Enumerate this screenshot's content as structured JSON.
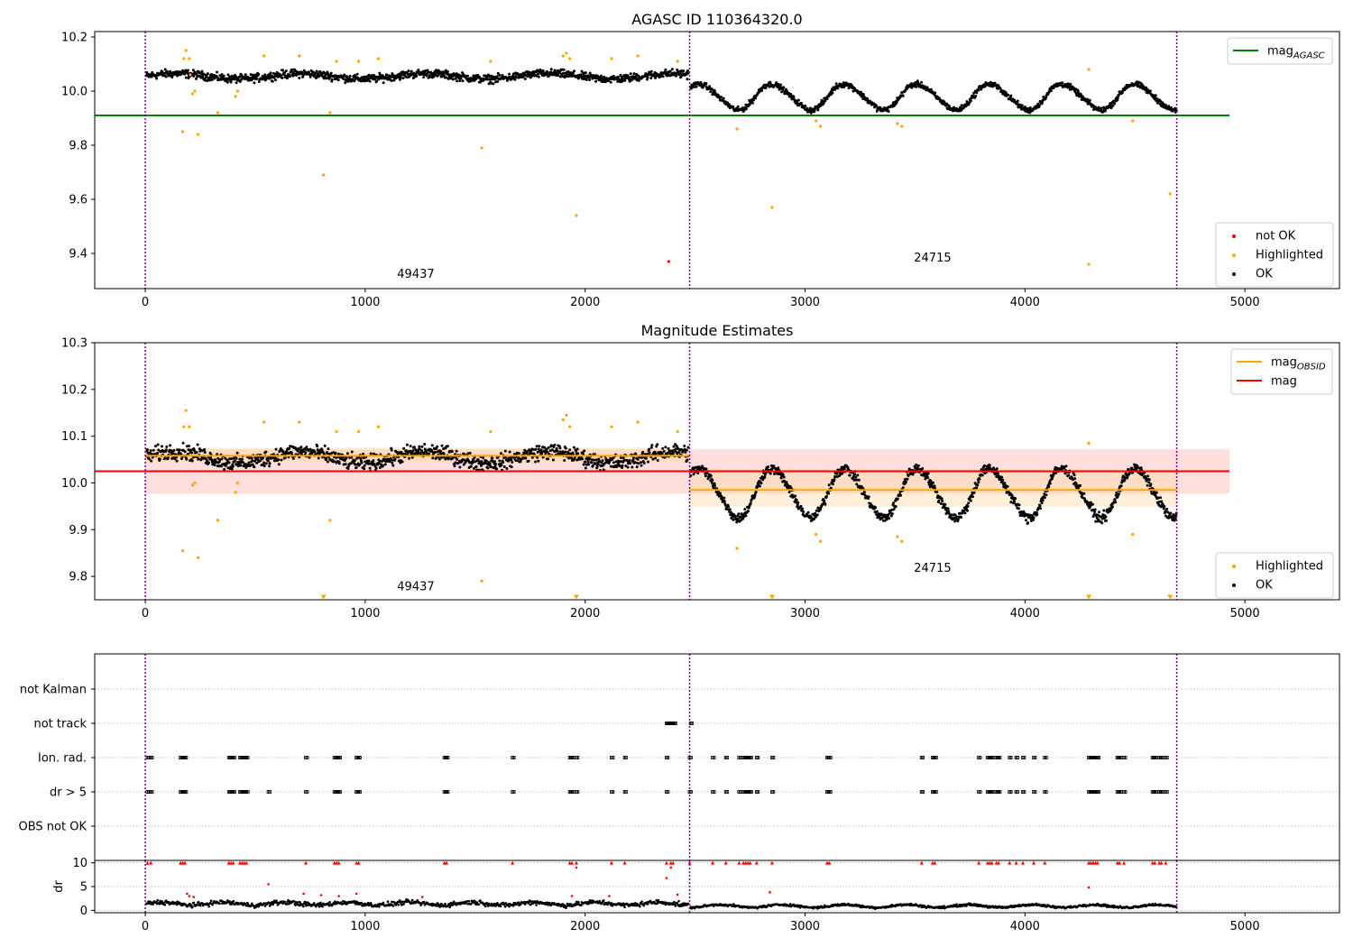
{
  "chart_data": [
    {
      "type": "scatter",
      "title": "AGASC ID 110364320.0",
      "xlim": [
        -230,
        5430
      ],
      "ylim": [
        9.27,
        10.22
      ],
      "xticks": [
        0,
        1000,
        2000,
        3000,
        4000,
        5000
      ],
      "yticks": [
        9.4,
        9.6,
        9.8,
        10.0,
        10.2
      ],
      "obs_boundaries": [
        0,
        2475,
        4690
      ],
      "obs_labels": [
        {
          "text": "49437",
          "x": 1230,
          "y": 9.31
        },
        {
          "text": "24715",
          "x": 3580,
          "y": 9.37
        }
      ],
      "lines": [
        {
          "name": "mag_AGASC",
          "legend": "mag",
          "legend_sub": "AGASC",
          "color": "#008000",
          "x": [
            -230,
            4930
          ],
          "y": [
            9.91,
            9.91
          ]
        }
      ],
      "series": [
        {
          "name": "not OK",
          "color": "#ff0000",
          "points": [
            [
              2380,
              9.37
            ]
          ]
        },
        {
          "name": "Highlighted",
          "color": "#ffa500",
          "points": [
            [
              170,
              9.85
            ],
            [
              175,
              10.12
            ],
            [
              185,
              10.15
            ],
            [
              200,
              10.12
            ],
            [
              205,
              10.06
            ],
            [
              215,
              9.99
            ],
            [
              225,
              10.0
            ],
            [
              240,
              9.84
            ],
            [
              330,
              9.92
            ],
            [
              410,
              9.98
            ],
            [
              420,
              10.0
            ],
            [
              540,
              10.13
            ],
            [
              700,
              10.13
            ],
            [
              810,
              9.69
            ],
            [
              840,
              9.92
            ],
            [
              870,
              10.11
            ],
            [
              970,
              10.11
            ],
            [
              1060,
              10.12
            ],
            [
              1530,
              9.79
            ],
            [
              1570,
              10.11
            ],
            [
              1900,
              10.13
            ],
            [
              1915,
              10.14
            ],
            [
              1930,
              10.12
            ],
            [
              1960,
              9.54
            ],
            [
              2120,
              10.12
            ],
            [
              2240,
              10.13
            ],
            [
              2420,
              10.11
            ],
            [
              2690,
              9.86
            ],
            [
              2850,
              9.57
            ],
            [
              3050,
              9.89
            ],
            [
              3070,
              9.87
            ],
            [
              3420,
              9.88
            ],
            [
              3440,
              9.87
            ],
            [
              4290,
              10.08
            ],
            [
              4290,
              9.36
            ],
            [
              4490,
              9.89
            ],
            [
              4660,
              9.62
            ]
          ]
        }
      ],
      "ok_segments": [
        {
          "x0": 5,
          "x1": 2470,
          "base": 10.055,
          "amp": 0.01,
          "noise": 0.022
        },
        {
          "x0": 2480,
          "x1": 4690,
          "base": 9.985,
          "amp": 0.055,
          "noise": 0.015
        }
      ],
      "legend_upper": [
        {
          "text": "mag",
          "sub": "AGASC",
          "kind": "line",
          "color": "#008000"
        }
      ],
      "legend_lower": [
        {
          "text": "not OK",
          "kind": "dot",
          "color": "#ff0000"
        },
        {
          "text": "Highlighted",
          "kind": "dot",
          "color": "#ffa500"
        },
        {
          "text": "OK",
          "kind": "dot",
          "color": "#000000"
        }
      ]
    },
    {
      "type": "scatter",
      "title": "Magnitude Estimates",
      "xlim": [
        -230,
        5430
      ],
      "ylim": [
        9.75,
        10.3
      ],
      "xticks": [
        0,
        1000,
        2000,
        3000,
        4000,
        5000
      ],
      "yticks": [
        9.8,
        9.9,
        10.0,
        10.1,
        10.2,
        10.3
      ],
      "obs_boundaries": [
        0,
        2475,
        4690
      ],
      "obs_labels": [
        {
          "text": "49437",
          "x": 1230,
          "y": 9.77
        },
        {
          "text": "24715",
          "x": 3580,
          "y": 9.81
        }
      ],
      "bands": [
        {
          "color": "#ffb6b6",
          "opacity": 0.45,
          "x": [
            0,
            4930
          ],
          "y": [
            9.977,
            10.072
          ]
        },
        {
          "color": "#ffd9a8",
          "opacity": 0.45,
          "x": [
            0,
            2475
          ],
          "y": [
            10.043,
            10.075
          ]
        },
        {
          "color": "#ffd9a8",
          "opacity": 0.45,
          "x": [
            2475,
            4690
          ],
          "y": [
            9.95,
            10.03
          ]
        }
      ],
      "lines": [
        {
          "name": "mag_OBSID",
          "legend": "mag",
          "legend_sub": "OBSID",
          "color": "#ffa500",
          "segments": [
            [
              [
                0,
                10.058
              ],
              [
                2475,
                10.058
              ]
            ],
            [
              [
                2475,
                9.985
              ],
              [
                4690,
                9.985
              ]
            ]
          ]
        },
        {
          "name": "mag",
          "legend": "mag",
          "color": "#ff0000",
          "segments": [
            [
              [
                -230,
                10.025
              ],
              [
                4930,
                10.025
              ]
            ]
          ]
        }
      ],
      "series": [
        {
          "name": "Highlighted",
          "color": "#ffa500",
          "points": [
            [
              170,
              9.855
            ],
            [
              175,
              10.12
            ],
            [
              185,
              10.155
            ],
            [
              200,
              10.12
            ],
            [
              205,
              10.06
            ],
            [
              215,
              9.995
            ],
            [
              225,
              10.0
            ],
            [
              240,
              9.84
            ],
            [
              330,
              9.92
            ],
            [
              410,
              9.98
            ],
            [
              420,
              10.0
            ],
            [
              540,
              10.13
            ],
            [
              700,
              10.13
            ],
            [
              840,
              9.92
            ],
            [
              870,
              10.11
            ],
            [
              970,
              10.11
            ],
            [
              1060,
              10.12
            ],
            [
              1530,
              9.79
            ],
            [
              1570,
              10.11
            ],
            [
              1900,
              10.135
            ],
            [
              1915,
              10.145
            ],
            [
              1930,
              10.12
            ],
            [
              2120,
              10.12
            ],
            [
              2240,
              10.13
            ],
            [
              2420,
              10.11
            ],
            [
              2690,
              9.86
            ],
            [
              3050,
              9.89
            ],
            [
              3070,
              9.875
            ],
            [
              3420,
              9.885
            ],
            [
              3440,
              9.875
            ],
            [
              4290,
              10.085
            ],
            [
              4490,
              9.89
            ]
          ]
        },
        {
          "name": "clipped",
          "color": "#ffa500",
          "marker": "triangle-down",
          "points": [
            [
              810,
              9.753
            ],
            [
              1960,
              9.753
            ],
            [
              2850,
              9.753
            ],
            [
              4290,
              9.753
            ],
            [
              4660,
              9.753
            ]
          ]
        }
      ],
      "ok_segments": [
        {
          "x0": 5,
          "x1": 2470,
          "base": 10.055,
          "amp": 0.012,
          "noise": 0.025
        },
        {
          "x0": 2480,
          "x1": 4690,
          "base": 9.985,
          "amp": 0.06,
          "noise": 0.016
        }
      ],
      "legend_upper": [
        {
          "text": "mag",
          "sub": "OBSID",
          "kind": "line",
          "color": "#ffa500"
        },
        {
          "text": "mag",
          "kind": "line",
          "color": "#ff0000"
        }
      ],
      "legend_lower": [
        {
          "text": "Highlighted",
          "kind": "dot",
          "color": "#ffa500"
        },
        {
          "text": "OK",
          "kind": "dot",
          "color": "#000000"
        }
      ]
    },
    {
      "type": "scatter",
      "title": "",
      "xlim": [
        -230,
        5430
      ],
      "categories": [
        "not Kalman",
        "not track",
        "Ion. rad.",
        "dr > 5",
        "OBS not OK"
      ],
      "obs_boundaries": [
        0,
        2475,
        4690
      ],
      "flag_events": {
        "not track": [
          2370,
          2375,
          2380,
          2385,
          2390,
          2395,
          2400,
          2405,
          2480
        ],
        "Ion. rad.": [
          10,
          25,
          160,
          170,
          180,
          380,
          390,
          400,
          430,
          440,
          450,
          460,
          730,
          860,
          870,
          880,
          960,
          970,
          1360,
          1370,
          1670,
          1930,
          1940,
          1960,
          2120,
          2180,
          2370,
          2475,
          2580,
          2640,
          2700,
          2720,
          2730,
          2740,
          2750,
          2780,
          2850,
          3100,
          3110,
          3530,
          3580,
          3590,
          3790,
          3830,
          3840,
          3850,
          3870,
          3880,
          3930,
          3960,
          3990,
          4040,
          4090,
          4290,
          4300,
          4310,
          4320,
          4330,
          4420,
          4430,
          4450,
          4580,
          4590,
          4610,
          4620,
          4640
        ],
        "dr > 5": [
          10,
          25,
          160,
          170,
          180,
          380,
          390,
          400,
          430,
          440,
          450,
          460,
          560,
          730,
          860,
          870,
          880,
          960,
          970,
          1360,
          1370,
          1670,
          1930,
          1940,
          1960,
          2120,
          2180,
          2370,
          2475,
          2580,
          2640,
          2700,
          2720,
          2730,
          2740,
          2750,
          2780,
          2850,
          3100,
          3110,
          3530,
          3580,
          3590,
          3790,
          3830,
          3840,
          3850,
          3870,
          3880,
          3930,
          3960,
          3990,
          4040,
          4090,
          4290,
          4300,
          4310,
          4320,
          4330,
          4420,
          4430,
          4450,
          4580,
          4590,
          4610,
          4620,
          4640
        ]
      }
    },
    {
      "type": "scatter",
      "title": "",
      "xlim": [
        -230,
        5430
      ],
      "ylim": [
        -0.5,
        10.5
      ],
      "ylabel": "dr",
      "yticks": [
        0,
        5,
        10
      ],
      "xticks": [
        0,
        1000,
        2000,
        3000,
        4000,
        5000
      ],
      "obs_boundaries": [
        0,
        2475,
        4690
      ],
      "clipped_x": [
        10,
        25,
        160,
        170,
        180,
        380,
        390,
        400,
        430,
        440,
        450,
        460,
        730,
        860,
        870,
        880,
        960,
        970,
        1360,
        1370,
        1670,
        1930,
        1940,
        1960,
        2120,
        2180,
        2370,
        2390,
        2400,
        2475,
        2580,
        2640,
        2700,
        2720,
        2730,
        2740,
        2750,
        2780,
        2850,
        3100,
        3110,
        3530,
        3580,
        3590,
        3790,
        3830,
        3840,
        3850,
        3870,
        3880,
        3930,
        3960,
        3990,
        4040,
        4090,
        4290,
        4300,
        4310,
        4320,
        4330,
        4420,
        4430,
        4450,
        4580,
        4590,
        4610,
        4620,
        4640
      ],
      "red_points": [
        [
          190,
          3.5
        ],
        [
          200,
          3.0
        ],
        [
          220,
          2.8
        ],
        [
          560,
          5.5
        ],
        [
          720,
          3.5
        ],
        [
          800,
          3.2
        ],
        [
          880,
          3.0
        ],
        [
          960,
          3.5
        ],
        [
          1260,
          2.8
        ],
        [
          1940,
          3.0
        ],
        [
          1960,
          9.0
        ],
        [
          2110,
          3.0
        ],
        [
          2370,
          6.8
        ],
        [
          2390,
          9.0
        ],
        [
          2420,
          3.3
        ],
        [
          2840,
          3.8
        ],
        [
          4290,
          4.8
        ]
      ],
      "dr_segments": [
        {
          "x0": 5,
          "x1": 2470,
          "base": 1.4,
          "noise": 0.7
        },
        {
          "x0": 2480,
          "x1": 4690,
          "base": 0.9,
          "noise": 0.35
        }
      ]
    }
  ]
}
